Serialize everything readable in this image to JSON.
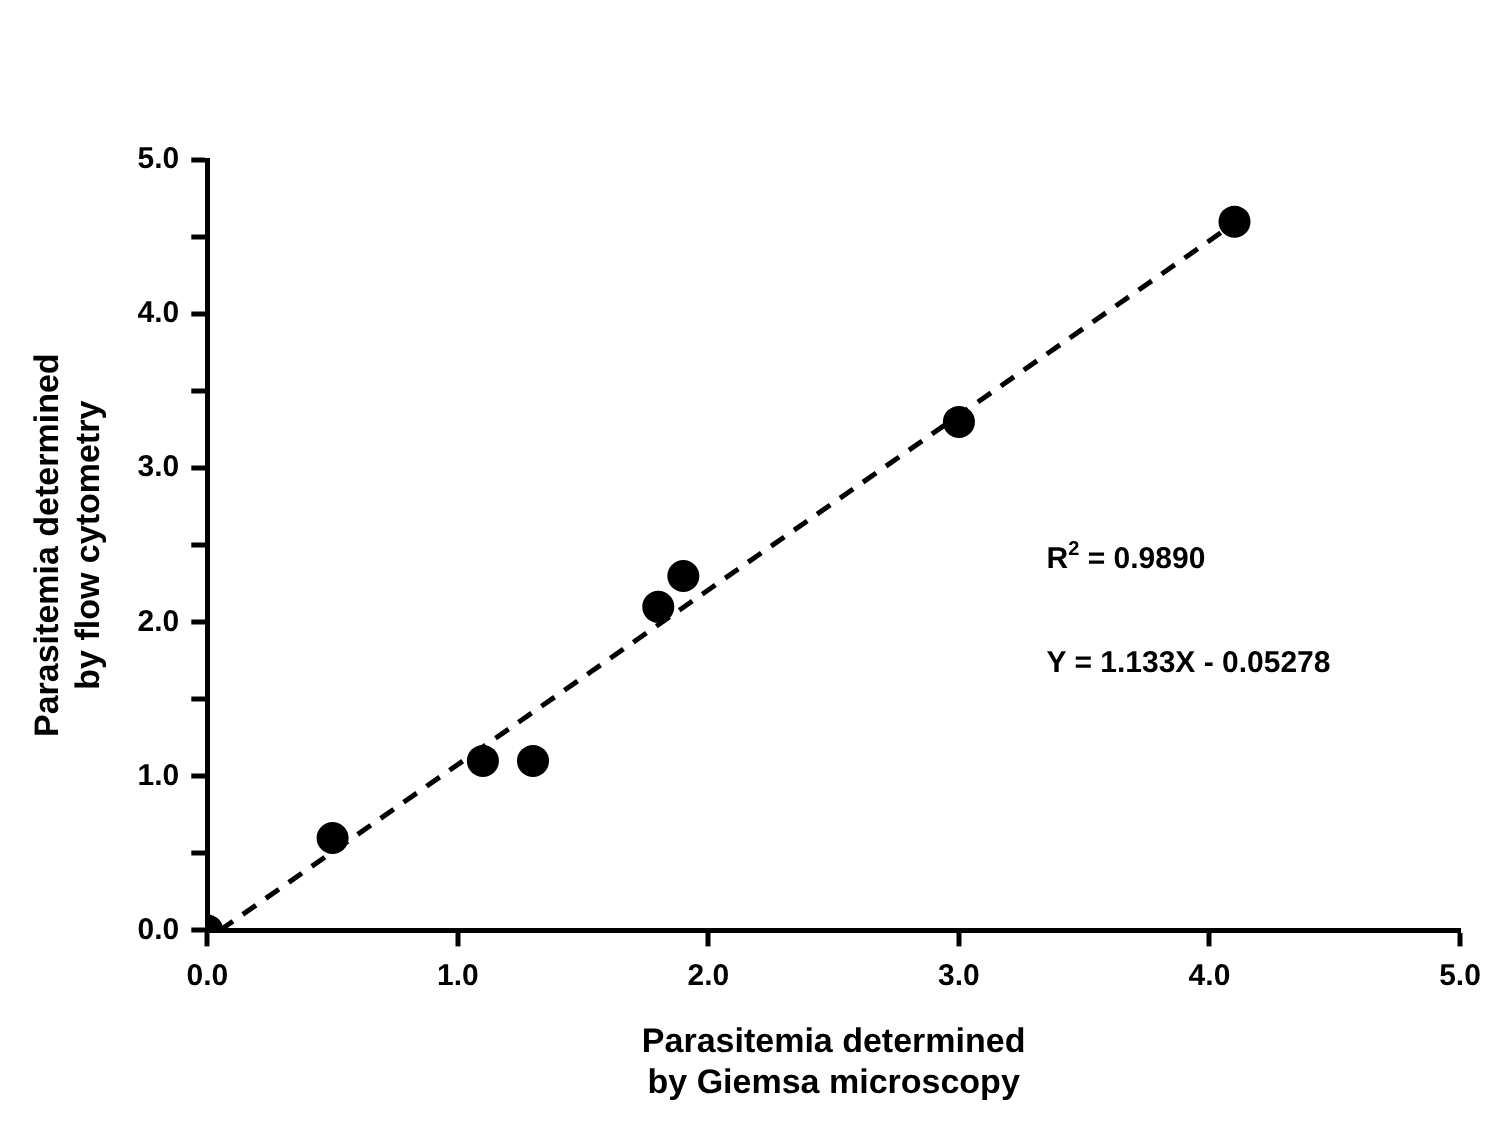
{
  "chart_data": {
    "type": "scatter",
    "xlabel": "Parasitemia determined\nby Giemsa microscopy",
    "ylabel": "Parasitemia determined\nby flow cytometry",
    "xlim": [
      0,
      5
    ],
    "ylim": [
      0,
      5
    ],
    "xticks": [
      {
        "value": 0,
        "label": "0.0"
      },
      {
        "value": 1,
        "label": "1.0"
      },
      {
        "value": 2,
        "label": "2.0"
      },
      {
        "value": 3,
        "label": "3.0"
      },
      {
        "value": 4,
        "label": "4.0"
      },
      {
        "value": 5,
        "label": "5.0"
      }
    ],
    "yticks": [
      {
        "value": 0,
        "label": "0.0"
      },
      {
        "value": 0.5,
        "label": null
      },
      {
        "value": 1,
        "label": "1.0"
      },
      {
        "value": 1.5,
        "label": null
      },
      {
        "value": 2,
        "label": "2.0"
      },
      {
        "value": 2.5,
        "label": null
      },
      {
        "value": 3,
        "label": "3.0"
      },
      {
        "value": 3.5,
        "label": null
      },
      {
        "value": 4,
        "label": "4.0"
      },
      {
        "value": 4.5,
        "label": null
      },
      {
        "value": 5,
        "label": "5.0"
      }
    ],
    "series": [
      {
        "type": "scatter",
        "color": "#000000",
        "marker": "circle",
        "x": [
          0,
          0.5,
          1.1,
          1.3,
          1.8,
          1.9,
          3.0,
          4.1
        ],
        "values": [
          0,
          0.6,
          1.1,
          1.1,
          2.1,
          2.3,
          3.3,
          4.6
        ]
      },
      {
        "type": "line",
        "color": "#000000",
        "marker": "none",
        "line_style": "dashed",
        "x": [
          0.05,
          4.1
        ],
        "values": [
          0.0,
          4.59
        ]
      }
    ],
    "annotations": [
      "R$^{2}$ = 0.9890",
      "Y = 1.133X - 0.05278"
    ],
    "grid": false,
    "legend": false
  }
}
